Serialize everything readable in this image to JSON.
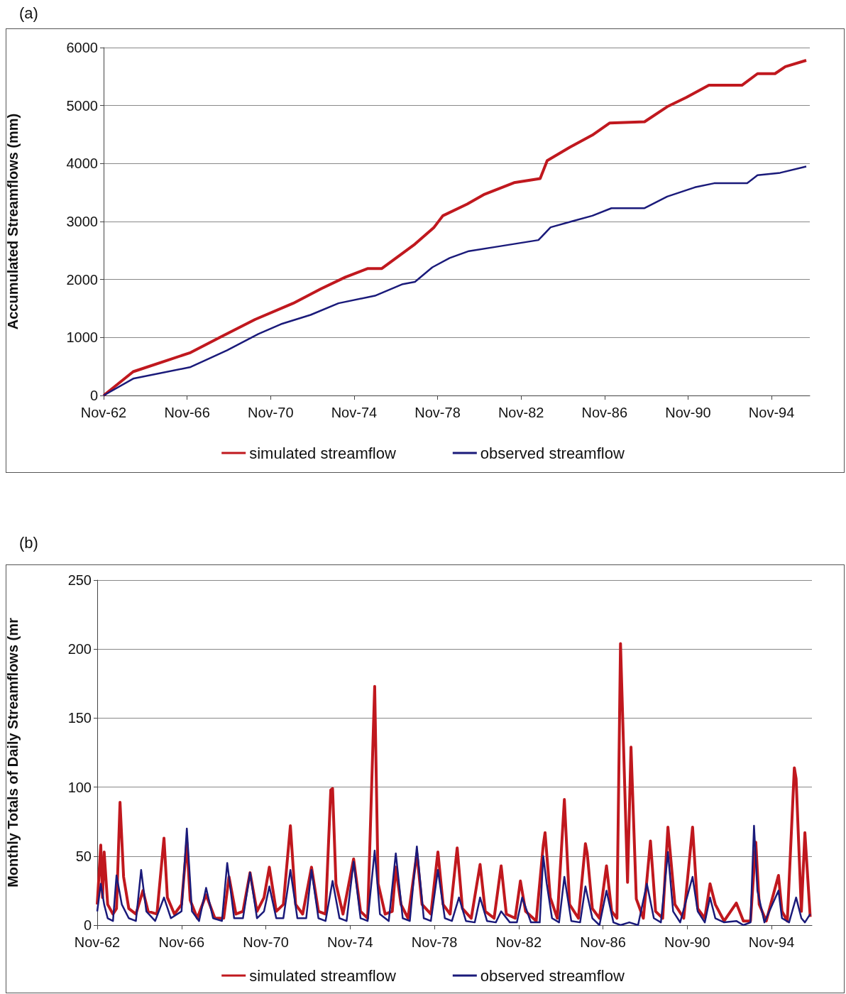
{
  "chart_data": [
    {
      "type": "line",
      "title": "(a)",
      "ylabel": "Accumulated Streamflows (mm)",
      "xlim": [
        "1962-11",
        "1996-09"
      ],
      "xticks": [
        {
          "value": "1962-11",
          "label": "Nov-62"
        },
        {
          "value": "1966-11",
          "label": "Nov-66"
        },
        {
          "value": "1970-11",
          "label": "Nov-70"
        },
        {
          "value": "1974-11",
          "label": "Nov-74"
        },
        {
          "value": "1978-11",
          "label": "Nov-78"
        },
        {
          "value": "1982-11",
          "label": "Nov-82"
        },
        {
          "value": "1986-11",
          "label": "Nov-86"
        },
        {
          "value": "1990-11",
          "label": "Nov-90"
        },
        {
          "value": "1994-11",
          "label": "Nov-94"
        }
      ],
      "ylim": [
        0,
        6000
      ],
      "yticks": [
        0,
        1000,
        2000,
        3000,
        4000,
        5000,
        6000
      ],
      "grid": "y",
      "legend": "bottom",
      "marker": "none",
      "line_style": "solid",
      "series": [
        {
          "name": "simulated streamflow",
          "color": "#c0181e",
          "x": [
            "1962-11",
            "1964-04",
            "1967-01",
            "1968-07",
            "1970-02",
            "1971-12",
            "1973-04",
            "1974-06",
            "1975-07",
            "1976-03",
            "1977-10",
            "1978-09",
            "1979-02",
            "1980-04",
            "1981-02",
            "1982-07",
            "1983-10",
            "1984-02",
            "1985-03",
            "1986-04",
            "1987-02",
            "1988-10",
            "1989-11",
            "1990-10",
            "1991-11",
            "1993-06",
            "1994-03",
            "1995-01",
            "1995-07",
            "1996-07"
          ],
          "values": [
            0,
            410,
            740,
            1020,
            1310,
            1590,
            1840,
            2040,
            2190,
            2190,
            2610,
            2900,
            3100,
            3300,
            3470,
            3670,
            3740,
            4050,
            4280,
            4490,
            4700,
            4720,
            4980,
            5140,
            5350,
            5350,
            5550,
            5550,
            5670,
            5780
          ]
        },
        {
          "name": "observed streamflow",
          "color": "#1a1a7a",
          "x": [
            "1962-11",
            "1964-04",
            "1967-01",
            "1968-10",
            "1970-04",
            "1971-05",
            "1972-10",
            "1974-02",
            "1975-11",
            "1977-03",
            "1977-10",
            "1978-08",
            "1979-06",
            "1980-05",
            "1981-10",
            "1983-09",
            "1984-04",
            "1985-05",
            "1986-04",
            "1987-03",
            "1988-10",
            "1989-11",
            "1991-03",
            "1992-02",
            "1993-09",
            "1994-03",
            "1995-04",
            "1996-07"
          ],
          "values": [
            0,
            290,
            490,
            780,
            1060,
            1230,
            1390,
            1590,
            1720,
            1920,
            1960,
            2210,
            2370,
            2490,
            2570,
            2680,
            2900,
            3010,
            3100,
            3230,
            3230,
            3430,
            3590,
            3660,
            3660,
            3800,
            3840,
            3950
          ]
        }
      ]
    },
    {
      "type": "line",
      "title": "(b)",
      "ylabel": "Monthly Totals of Daily Streamflows (mr",
      "xlim": [
        "1962-11",
        "1996-10"
      ],
      "xticks": [
        {
          "value": "1962-11",
          "label": "Nov-62"
        },
        {
          "value": "1966-11",
          "label": "Nov-66"
        },
        {
          "value": "1970-11",
          "label": "Nov-70"
        },
        {
          "value": "1974-11",
          "label": "Nov-74"
        },
        {
          "value": "1978-11",
          "label": "Nov-78"
        },
        {
          "value": "1982-11",
          "label": "Nov-82"
        },
        {
          "value": "1986-11",
          "label": "Nov-86"
        },
        {
          "value": "1990-11",
          "label": "Nov-90"
        },
        {
          "value": "1994-11",
          "label": "Nov-94"
        }
      ],
      "ylim": [
        0,
        250
      ],
      "yticks": [
        0,
        50,
        100,
        150,
        200,
        250
      ],
      "grid": "y",
      "legend": "bottom",
      "marker": "none",
      "line_style": "solid",
      "series": [
        {
          "name": "simulated streamflow",
          "color": "#c0181e",
          "x": [
            "1962-11",
            "1963-01",
            "1963-02",
            "1963-03",
            "1963-05",
            "1963-08",
            "1963-10",
            "1963-12",
            "1964-02",
            "1964-05",
            "1964-09",
            "1965-01",
            "1965-04",
            "1965-09",
            "1966-01",
            "1966-03",
            "1966-07",
            "1966-11",
            "1967-02",
            "1967-04",
            "1967-08",
            "1968-01",
            "1968-06",
            "1968-11",
            "1969-02",
            "1969-06",
            "1969-10",
            "1970-02",
            "1970-06",
            "1970-10",
            "1971-01",
            "1971-05",
            "1971-09",
            "1972-01",
            "1972-04",
            "1972-08",
            "1973-01",
            "1973-05",
            "1973-09",
            "1973-12",
            "1974-01",
            "1974-03",
            "1974-07",
            "1975-01",
            "1975-05",
            "1975-09",
            "1976-01",
            "1976-03",
            "1976-07",
            "1976-11",
            "1977-01",
            "1977-04",
            "1977-08",
            "1978-01",
            "1978-04",
            "1978-09",
            "1979-01",
            "1979-04",
            "1979-08",
            "1979-12",
            "1980-03",
            "1980-08",
            "1981-01",
            "1981-04",
            "1981-09",
            "1982-01",
            "1982-04",
            "1982-09",
            "1982-12",
            "1983-03",
            "1983-09",
            "1984-01",
            "1984-02",
            "1984-05",
            "1984-09",
            "1985-01",
            "1985-04",
            "1985-09",
            "1986-01",
            "1986-02",
            "1986-05",
            "1986-09",
            "1987-01",
            "1987-04",
            "1987-07",
            "1987-09",
            "1988-01",
            "1988-03",
            "1988-06",
            "1988-10",
            "1989-02",
            "1989-05",
            "1989-09",
            "1989-12",
            "1990-04",
            "1990-09",
            "1991-02",
            "1991-05",
            "1991-09",
            "1991-12",
            "1992-03",
            "1992-08",
            "1993-03",
            "1993-07",
            "1993-11",
            "1994-02",
            "1994-04",
            "1994-08",
            "1995-03",
            "1995-05",
            "1995-08",
            "1995-12",
            "1996-01",
            "1996-04",
            "1996-06",
            "1996-09"
          ],
          "values": [
            15,
            58,
            20,
            53,
            15,
            8,
            12,
            89,
            35,
            12,
            8,
            25,
            10,
            8,
            63,
            20,
            8,
            15,
            60,
            18,
            5,
            22,
            5,
            5,
            35,
            8,
            10,
            38,
            10,
            20,
            42,
            10,
            15,
            72,
            15,
            8,
            42,
            10,
            8,
            98,
            99,
            30,
            8,
            48,
            10,
            5,
            173,
            30,
            8,
            10,
            42,
            15,
            5,
            52,
            15,
            8,
            53,
            15,
            8,
            56,
            12,
            5,
            44,
            10,
            5,
            43,
            8,
            5,
            32,
            10,
            3,
            58,
            67,
            20,
            5,
            91,
            15,
            5,
            59,
            52,
            12,
            5,
            43,
            10,
            5,
            204,
            31,
            129,
            19,
            5,
            61,
            10,
            5,
            71,
            15,
            5,
            71,
            12,
            5,
            30,
            15,
            3,
            16,
            3,
            3,
            60,
            15,
            3,
            36,
            10,
            3,
            114,
            106,
            10,
            67,
            6
          ]
        },
        {
          "name": "observed streamflow",
          "color": "#1a1a7a",
          "x": [
            "1962-11",
            "1963-01",
            "1963-03",
            "1963-05",
            "1963-08",
            "1963-10",
            "1964-01",
            "1964-05",
            "1964-09",
            "1964-12",
            "1965-03",
            "1965-08",
            "1966-01",
            "1966-05",
            "1966-11",
            "1967-02",
            "1967-05",
            "1967-09",
            "1968-01",
            "1968-05",
            "1968-10",
            "1969-01",
            "1969-05",
            "1969-10",
            "1970-02",
            "1970-06",
            "1970-10",
            "1971-01",
            "1971-05",
            "1971-09",
            "1972-01",
            "1972-05",
            "1972-10",
            "1973-01",
            "1973-05",
            "1973-09",
            "1974-01",
            "1974-05",
            "1974-09",
            "1975-01",
            "1975-05",
            "1975-09",
            "1976-01",
            "1976-04",
            "1976-09",
            "1977-01",
            "1977-05",
            "1977-09",
            "1978-01",
            "1978-05",
            "1978-09",
            "1979-01",
            "1979-05",
            "1979-09",
            "1980-01",
            "1980-05",
            "1980-10",
            "1981-01",
            "1981-05",
            "1981-10",
            "1982-01",
            "1982-06",
            "1982-10",
            "1983-01",
            "1983-06",
            "1983-11",
            "1984-01",
            "1984-03",
            "1984-06",
            "1984-10",
            "1985-01",
            "1985-05",
            "1985-10",
            "1986-01",
            "1986-05",
            "1986-09",
            "1987-01",
            "1987-05",
            "1987-09",
            "1988-02",
            "1988-07",
            "1988-12",
            "1989-04",
            "1989-08",
            "1989-12",
            "1990-03",
            "1990-07",
            "1991-02",
            "1991-05",
            "1991-09",
            "1991-12",
            "1992-03",
            "1992-08",
            "1993-03",
            "1993-07",
            "1993-11",
            "1994-01",
            "1994-03",
            "1994-07",
            "1995-03",
            "1995-05",
            "1995-09",
            "1996-01",
            "1996-04",
            "1996-06",
            "1996-09"
          ],
          "values": [
            10,
            30,
            15,
            5,
            3,
            36,
            15,
            5,
            3,
            40,
            10,
            3,
            20,
            5,
            10,
            70,
            10,
            3,
            27,
            5,
            3,
            45,
            5,
            5,
            38,
            5,
            10,
            28,
            5,
            5,
            40,
            5,
            5,
            40,
            5,
            3,
            32,
            5,
            3,
            46,
            5,
            3,
            54,
            8,
            3,
            52,
            5,
            3,
            57,
            5,
            3,
            40,
            5,
            3,
            20,
            3,
            2,
            20,
            3,
            2,
            10,
            2,
            2,
            20,
            2,
            2,
            50,
            30,
            5,
            2,
            35,
            3,
            2,
            28,
            5,
            0,
            25,
            2,
            0,
            2,
            0,
            30,
            5,
            2,
            53,
            10,
            2,
            35,
            10,
            2,
            20,
            5,
            2,
            3,
            0,
            2,
            72,
            25,
            2,
            25,
            5,
            2,
            20,
            5,
            2,
            8
          ]
        }
      ]
    }
  ]
}
